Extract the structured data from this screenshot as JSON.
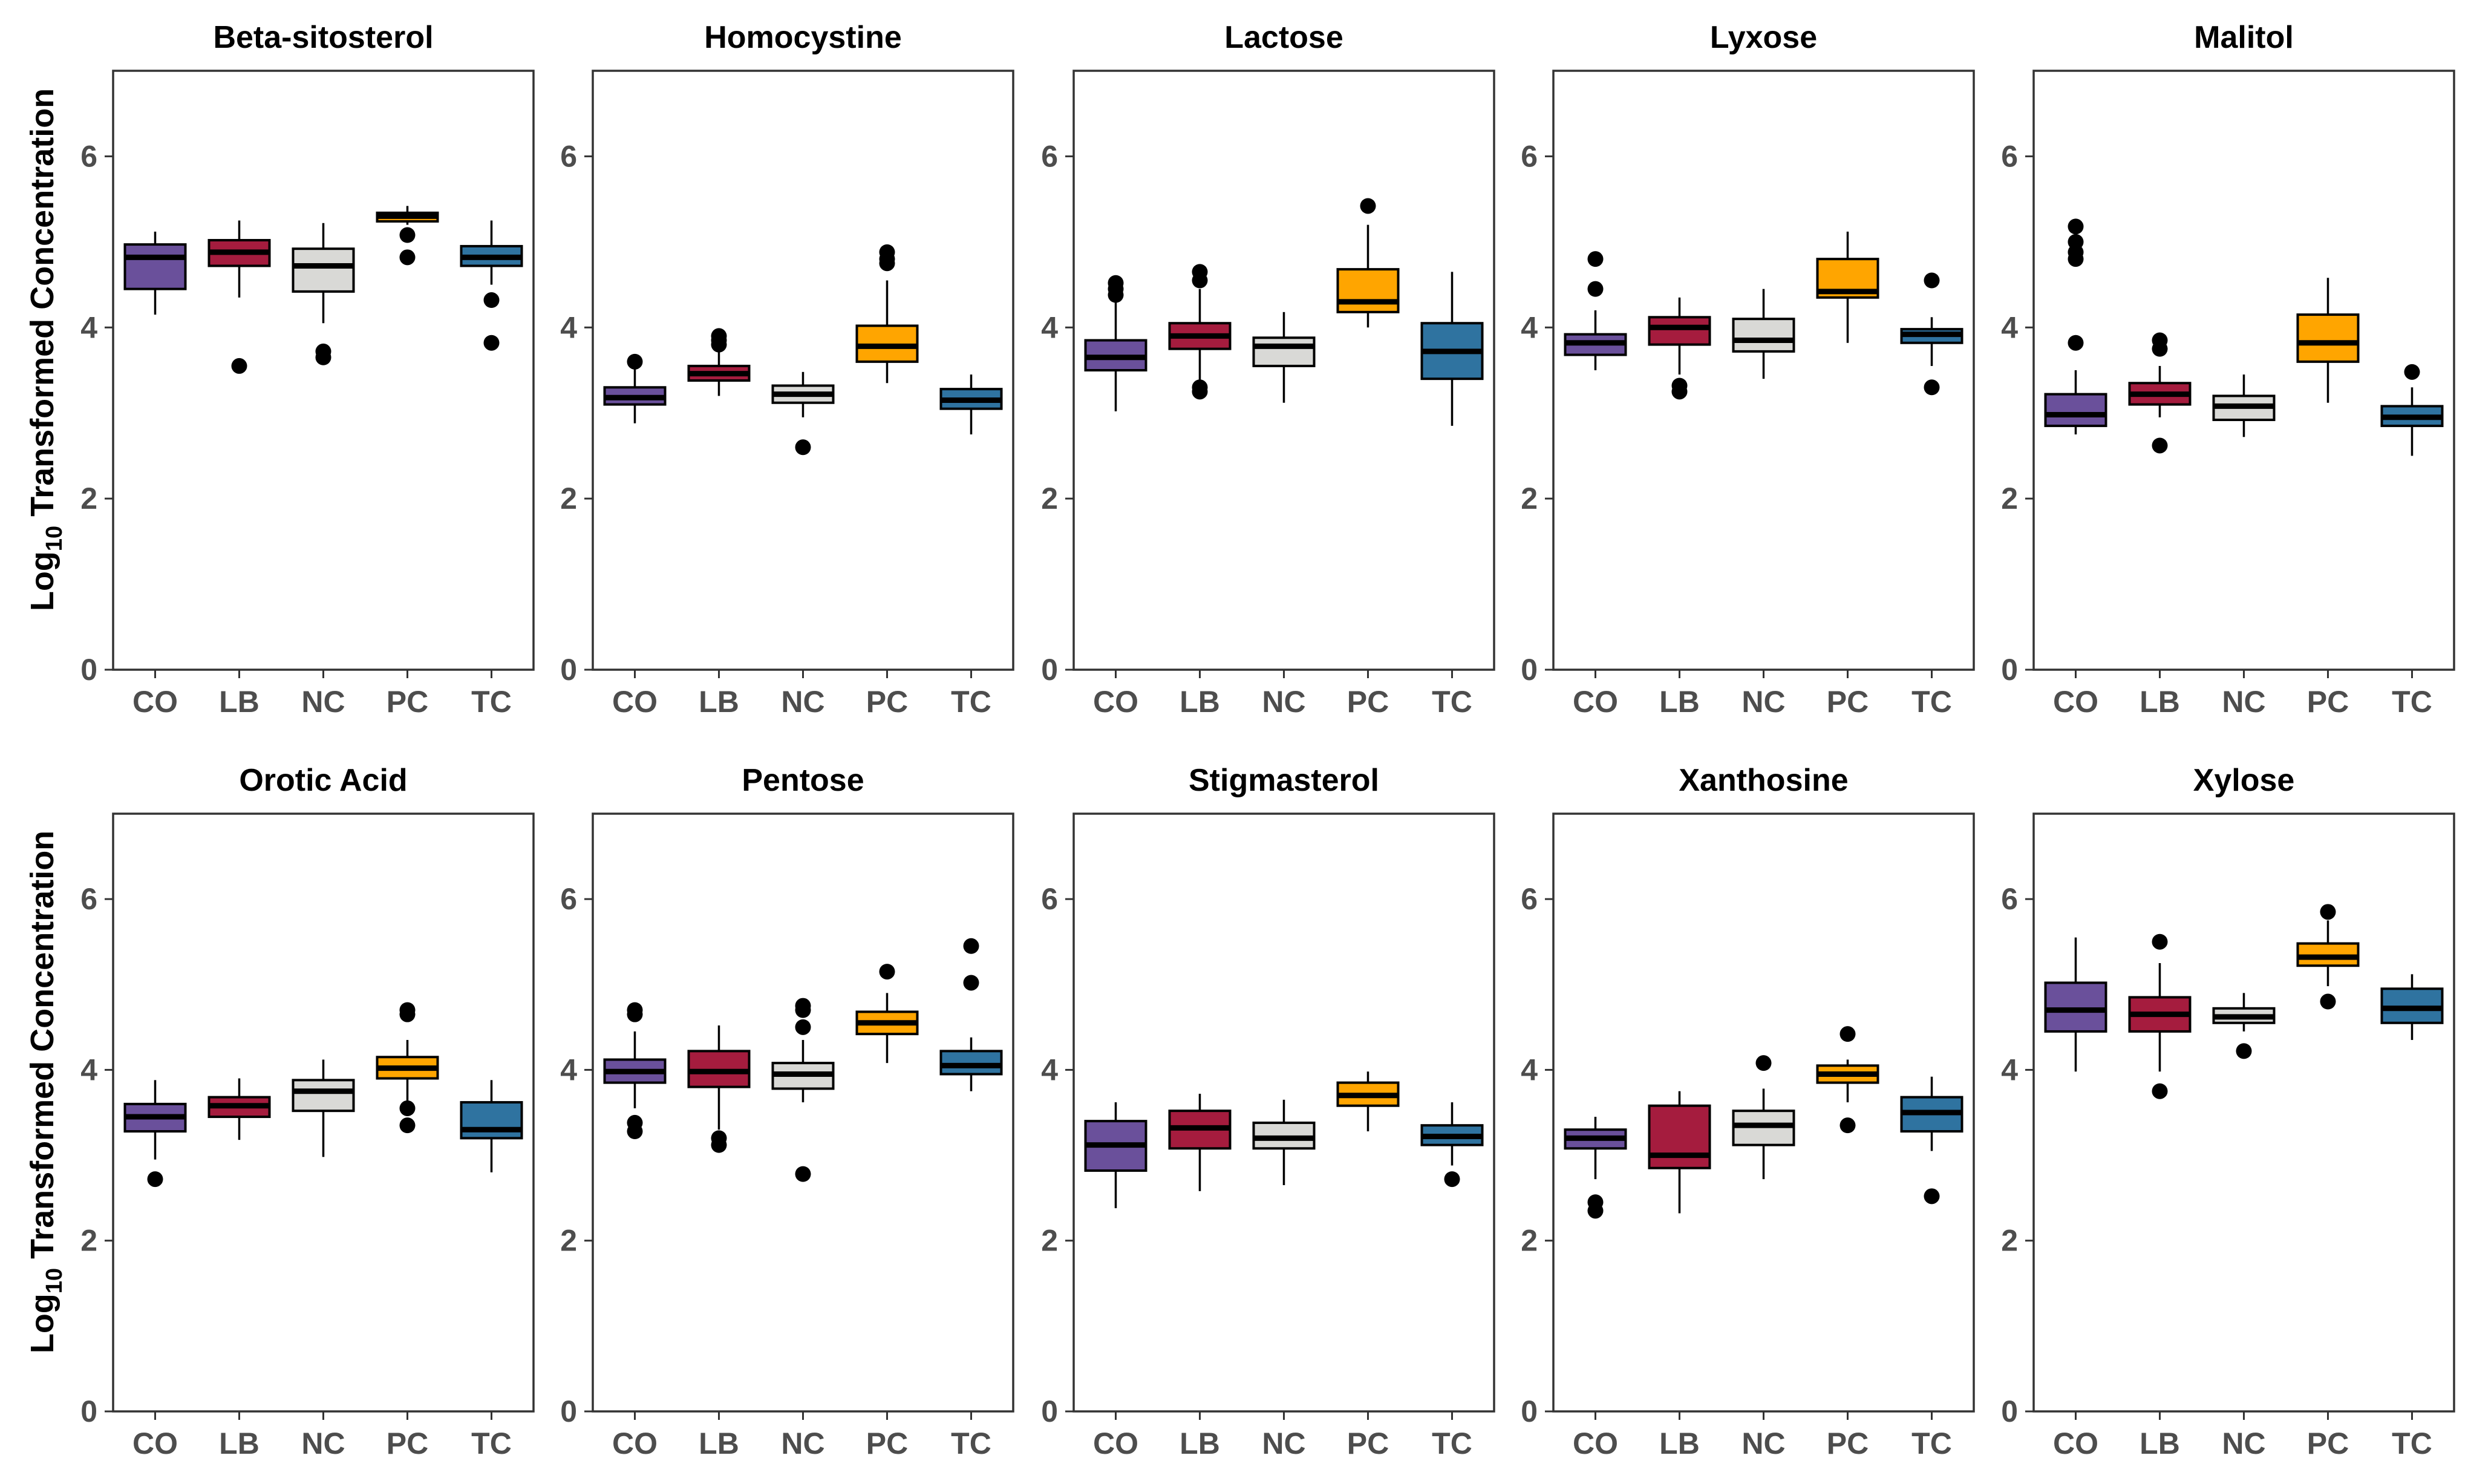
{
  "chart_data": {
    "type": "boxplot",
    "ylabel_prefix": "Log",
    "ylabel_subscript": "10",
    "ylabel_suffix": " Transformed Concentration",
    "ylim": [
      0,
      7
    ],
    "yticks": [
      0,
      2,
      4,
      6
    ],
    "groups": [
      "CO",
      "LB",
      "NC",
      "PC",
      "TC"
    ],
    "colors": [
      "#6A509B",
      "#A51C3E",
      "#D9D9D6",
      "#FFA500",
      "#2F73A0"
    ],
    "panels": [
      {
        "title": "Beta-sitosterol",
        "boxes": [
          {
            "group": "CO",
            "lw": 4.15,
            "q1": 4.45,
            "med": 4.82,
            "q3": 4.97,
            "uw": 5.12,
            "outliers": []
          },
          {
            "group": "LB",
            "lw": 4.35,
            "q1": 4.72,
            "med": 4.88,
            "q3": 5.02,
            "uw": 5.25,
            "outliers": [
              3.55
            ]
          },
          {
            "group": "NC",
            "lw": 4.05,
            "q1": 4.42,
            "med": 4.72,
            "q3": 4.92,
            "uw": 5.22,
            "outliers": [
              3.72,
              3.65
            ]
          },
          {
            "group": "PC",
            "lw": 5.2,
            "q1": 5.24,
            "med": 5.3,
            "q3": 5.34,
            "uw": 5.42,
            "outliers": [
              5.08,
              4.82
            ]
          },
          {
            "group": "TC",
            "lw": 4.5,
            "q1": 4.72,
            "med": 4.82,
            "q3": 4.95,
            "uw": 5.25,
            "outliers": [
              4.32,
              3.82
            ]
          }
        ]
      },
      {
        "title": "Homocystine",
        "boxes": [
          {
            "group": "CO",
            "lw": 2.88,
            "q1": 3.1,
            "med": 3.18,
            "q3": 3.3,
            "uw": 3.62,
            "outliers": [
              3.6
            ]
          },
          {
            "group": "LB",
            "lw": 3.2,
            "q1": 3.38,
            "med": 3.46,
            "q3": 3.55,
            "uw": 3.72,
            "outliers": [
              3.9,
              3.85,
              3.8
            ]
          },
          {
            "group": "NC",
            "lw": 2.95,
            "q1": 3.12,
            "med": 3.22,
            "q3": 3.32,
            "uw": 3.48,
            "outliers": [
              2.6
            ]
          },
          {
            "group": "PC",
            "lw": 3.35,
            "q1": 3.6,
            "med": 3.78,
            "q3": 4.02,
            "uw": 4.55,
            "outliers": [
              4.88,
              4.8,
              4.75
            ]
          },
          {
            "group": "TC",
            "lw": 2.75,
            "q1": 3.05,
            "med": 3.15,
            "q3": 3.28,
            "uw": 3.45,
            "outliers": []
          }
        ]
      },
      {
        "title": "Lactose",
        "boxes": [
          {
            "group": "CO",
            "lw": 3.02,
            "q1": 3.5,
            "med": 3.65,
            "q3": 3.85,
            "uw": 4.3,
            "outliers": [
              4.52,
              4.45,
              4.38
            ]
          },
          {
            "group": "LB",
            "lw": 3.35,
            "q1": 3.75,
            "med": 3.9,
            "q3": 4.05,
            "uw": 4.45,
            "outliers": [
              4.65,
              4.55,
              3.3,
              3.25
            ]
          },
          {
            "group": "NC",
            "lw": 3.12,
            "q1": 3.55,
            "med": 3.78,
            "q3": 3.88,
            "uw": 4.18,
            "outliers": []
          },
          {
            "group": "PC",
            "lw": 4.0,
            "q1": 4.18,
            "med": 4.3,
            "q3": 4.68,
            "uw": 5.2,
            "outliers": [
              5.42
            ]
          },
          {
            "group": "TC",
            "lw": 2.85,
            "q1": 3.4,
            "med": 3.72,
            "q3": 4.05,
            "uw": 4.65,
            "outliers": []
          }
        ]
      },
      {
        "title": "Lyxose",
        "boxes": [
          {
            "group": "CO",
            "lw": 3.5,
            "q1": 3.68,
            "med": 3.82,
            "q3": 3.92,
            "uw": 4.2,
            "outliers": [
              4.8,
              4.45
            ]
          },
          {
            "group": "LB",
            "lw": 3.45,
            "q1": 3.8,
            "med": 4.0,
            "q3": 4.12,
            "uw": 4.35,
            "outliers": [
              3.32,
              3.25
            ]
          },
          {
            "group": "NC",
            "lw": 3.4,
            "q1": 3.72,
            "med": 3.85,
            "q3": 4.1,
            "uw": 4.45,
            "outliers": []
          },
          {
            "group": "PC",
            "lw": 3.82,
            "q1": 4.35,
            "med": 4.42,
            "q3": 4.8,
            "uw": 5.12,
            "outliers": []
          },
          {
            "group": "TC",
            "lw": 3.55,
            "q1": 3.82,
            "med": 3.92,
            "q3": 3.98,
            "uw": 4.12,
            "outliers": [
              4.55,
              3.3
            ]
          }
        ]
      },
      {
        "title": "Malitol",
        "boxes": [
          {
            "group": "CO",
            "lw": 2.75,
            "q1": 2.85,
            "med": 2.98,
            "q3": 3.22,
            "uw": 3.5,
            "outliers": [
              5.18,
              5.0,
              4.88,
              4.8,
              3.82
            ]
          },
          {
            "group": "LB",
            "lw": 2.95,
            "q1": 3.1,
            "med": 3.22,
            "q3": 3.35,
            "uw": 3.55,
            "outliers": [
              3.85,
              3.75,
              2.62
            ]
          },
          {
            "group": "NC",
            "lw": 2.72,
            "q1": 2.92,
            "med": 3.08,
            "q3": 3.2,
            "uw": 3.45,
            "outliers": []
          },
          {
            "group": "PC",
            "lw": 3.12,
            "q1": 3.6,
            "med": 3.82,
            "q3": 4.15,
            "uw": 4.58,
            "outliers": []
          },
          {
            "group": "TC",
            "lw": 2.5,
            "q1": 2.85,
            "med": 2.95,
            "q3": 3.08,
            "uw": 3.3,
            "outliers": [
              3.48
            ]
          }
        ]
      },
      {
        "title": "Orotic Acid",
        "boxes": [
          {
            "group": "CO",
            "lw": 2.95,
            "q1": 3.28,
            "med": 3.45,
            "q3": 3.6,
            "uw": 3.88,
            "outliers": [
              2.72
            ]
          },
          {
            "group": "LB",
            "lw": 3.18,
            "q1": 3.45,
            "med": 3.58,
            "q3": 3.68,
            "uw": 3.9,
            "outliers": []
          },
          {
            "group": "NC",
            "lw": 2.98,
            "q1": 3.52,
            "med": 3.75,
            "q3": 3.88,
            "uw": 4.12,
            "outliers": []
          },
          {
            "group": "PC",
            "lw": 3.6,
            "q1": 3.9,
            "med": 4.02,
            "q3": 4.15,
            "uw": 4.35,
            "outliers": [
              4.7,
              4.65,
              3.55,
              3.35
            ]
          },
          {
            "group": "TC",
            "lw": 2.8,
            "q1": 3.2,
            "med": 3.3,
            "q3": 3.62,
            "uw": 3.88,
            "outliers": []
          }
        ]
      },
      {
        "title": "Pentose",
        "boxes": [
          {
            "group": "CO",
            "lw": 3.55,
            "q1": 3.85,
            "med": 3.98,
            "q3": 4.12,
            "uw": 4.45,
            "outliers": [
              4.7,
              4.65,
              3.38,
              3.28
            ]
          },
          {
            "group": "LB",
            "lw": 3.3,
            "q1": 3.8,
            "med": 3.98,
            "q3": 4.22,
            "uw": 4.52,
            "outliers": [
              3.2,
              3.12
            ]
          },
          {
            "group": "NC",
            "lw": 3.62,
            "q1": 3.78,
            "med": 3.95,
            "q3": 4.08,
            "uw": 4.35,
            "outliers": [
              4.75,
              4.7,
              4.5,
              2.78
            ]
          },
          {
            "group": "PC",
            "lw": 4.08,
            "q1": 4.42,
            "med": 4.55,
            "q3": 4.68,
            "uw": 4.9,
            "outliers": [
              5.15
            ]
          },
          {
            "group": "TC",
            "lw": 3.75,
            "q1": 3.95,
            "med": 4.05,
            "q3": 4.22,
            "uw": 4.38,
            "outliers": [
              5.45,
              5.02
            ]
          }
        ]
      },
      {
        "title": "Stigmasterol",
        "boxes": [
          {
            "group": "CO",
            "lw": 2.38,
            "q1": 2.82,
            "med": 3.12,
            "q3": 3.4,
            "uw": 3.62,
            "outliers": []
          },
          {
            "group": "LB",
            "lw": 2.58,
            "q1": 3.08,
            "med": 3.32,
            "q3": 3.52,
            "uw": 3.72,
            "outliers": []
          },
          {
            "group": "NC",
            "lw": 2.65,
            "q1": 3.08,
            "med": 3.2,
            "q3": 3.38,
            "uw": 3.65,
            "outliers": []
          },
          {
            "group": "PC",
            "lw": 3.28,
            "q1": 3.58,
            "med": 3.7,
            "q3": 3.85,
            "uw": 3.98,
            "outliers": []
          },
          {
            "group": "TC",
            "lw": 2.88,
            "q1": 3.12,
            "med": 3.22,
            "q3": 3.35,
            "uw": 3.62,
            "outliers": [
              2.72
            ]
          }
        ]
      },
      {
        "title": "Xanthosine",
        "boxes": [
          {
            "group": "CO",
            "lw": 2.72,
            "q1": 3.08,
            "med": 3.2,
            "q3": 3.3,
            "uw": 3.45,
            "outliers": [
              2.45,
              2.35
            ]
          },
          {
            "group": "LB",
            "lw": 2.32,
            "q1": 2.85,
            "med": 3.0,
            "q3": 3.58,
            "uw": 3.75,
            "outliers": []
          },
          {
            "group": "NC",
            "lw": 2.72,
            "q1": 3.12,
            "med": 3.35,
            "q3": 3.52,
            "uw": 3.78,
            "outliers": [
              4.08
            ]
          },
          {
            "group": "PC",
            "lw": 3.62,
            "q1": 3.85,
            "med": 3.95,
            "q3": 4.05,
            "uw": 4.12,
            "outliers": [
              4.42,
              3.35
            ]
          },
          {
            "group": "TC",
            "lw": 3.05,
            "q1": 3.28,
            "med": 3.5,
            "q3": 3.68,
            "uw": 3.92,
            "outliers": [
              2.52
            ]
          }
        ]
      },
      {
        "title": "Xylose",
        "boxes": [
          {
            "group": "CO",
            "lw": 3.98,
            "q1": 4.45,
            "med": 4.7,
            "q3": 5.02,
            "uw": 5.55,
            "outliers": []
          },
          {
            "group": "LB",
            "lw": 3.98,
            "q1": 4.45,
            "med": 4.65,
            "q3": 4.85,
            "uw": 5.25,
            "outliers": [
              5.5,
              3.75
            ]
          },
          {
            "group": "NC",
            "lw": 4.45,
            "q1": 4.55,
            "med": 4.62,
            "q3": 4.72,
            "uw": 4.9,
            "outliers": [
              4.22
            ]
          },
          {
            "group": "PC",
            "lw": 4.98,
            "q1": 5.22,
            "med": 5.32,
            "q3": 5.48,
            "uw": 5.75,
            "outliers": [
              5.85,
              4.8
            ]
          },
          {
            "group": "TC",
            "lw": 4.35,
            "q1": 4.55,
            "med": 4.72,
            "q3": 4.95,
            "uw": 5.12,
            "outliers": []
          }
        ]
      }
    ]
  }
}
